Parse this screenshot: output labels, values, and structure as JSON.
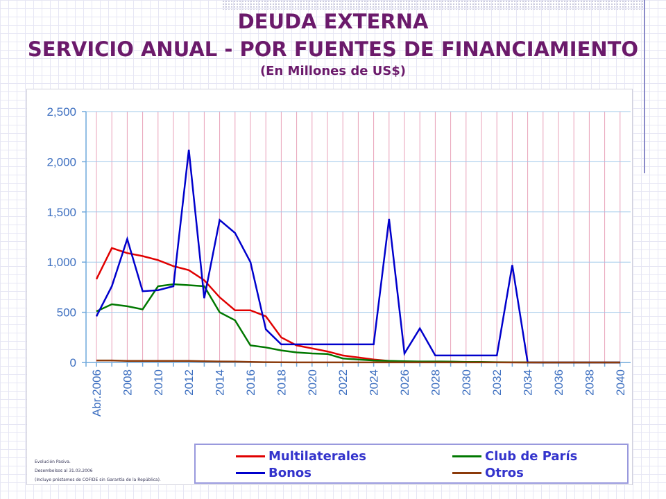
{
  "title_line1": "DEUDA EXTERNA",
  "title_line2": "SERVICIO ANUAL - POR FUENTES DE FINANCIAMIENTO",
  "title_line3": "(En Millones de US$)",
  "footnotes": [
    "Evolución Pasiva.",
    "Desembolsos al 31.03.2006",
    "(Incluye préstamos de COFIDE sin Garantía de la República)."
  ],
  "chart_data": {
    "type": "line",
    "title": "SERVICIO ANUAL - POR FUENTES DE FINANCIAMIENTO",
    "xlabel": "",
    "ylabel": "",
    "ylim": [
      0,
      2500
    ],
    "yticks": [
      0,
      500,
      1000,
      1500,
      2000,
      2500
    ],
    "ytick_labels": [
      "0",
      "500",
      "1,000",
      "1,500",
      "2,000",
      "2,500"
    ],
    "x": [
      "Abr.2006",
      "2007",
      "2008",
      "2009",
      "2010",
      "2011",
      "2012",
      "2013",
      "2014",
      "2015",
      "2016",
      "2017",
      "2018",
      "2019",
      "2020",
      "2021",
      "2022",
      "2023",
      "2024",
      "2025",
      "2026",
      "2027",
      "2028",
      "2029",
      "2030",
      "2031",
      "2032",
      "2033",
      "2034",
      "2035",
      "2036",
      "2037",
      "2038",
      "2039",
      "2040"
    ],
    "xtick_labels": [
      "Abr.2006",
      "2008",
      "2010",
      "2012",
      "2014",
      "2016",
      "2018",
      "2020",
      "2022",
      "2024",
      "2026",
      "2028",
      "2030",
      "2032",
      "2034",
      "2036",
      "2038",
      "2040"
    ],
    "xtick_label_indices": [
      0,
      2,
      4,
      6,
      8,
      10,
      12,
      14,
      16,
      18,
      20,
      22,
      24,
      26,
      28,
      30,
      32,
      34
    ],
    "grid": true,
    "legend": "bottom",
    "series": [
      {
        "name": "Multilaterales",
        "color": "#e00000",
        "values": [
          830,
          1140,
          1090,
          1060,
          1020,
          960,
          920,
          820,
          650,
          520,
          520,
          460,
          250,
          170,
          140,
          110,
          70,
          50,
          30,
          15,
          10,
          8,
          5,
          5,
          3,
          2,
          2,
          1,
          1,
          0,
          0,
          0,
          0,
          0,
          0
        ]
      },
      {
        "name": "Club de París",
        "color": "#007800",
        "values": [
          510,
          580,
          560,
          530,
          760,
          780,
          770,
          760,
          500,
          420,
          170,
          150,
          120,
          100,
          90,
          85,
          40,
          30,
          20,
          15,
          12,
          10,
          10,
          8,
          5,
          5,
          3,
          2,
          1,
          0,
          0,
          0,
          0,
          0,
          0
        ]
      },
      {
        "name": "Bonos",
        "color": "#0000cc",
        "values": [
          460,
          760,
          1230,
          710,
          720,
          760,
          2120,
          640,
          1420,
          1290,
          1000,
          330,
          180,
          180,
          180,
          180,
          180,
          180,
          180,
          1430,
          90,
          340,
          70,
          70,
          70,
          70,
          70,
          970,
          0,
          0,
          0,
          0,
          0,
          0,
          0
        ]
      },
      {
        "name": "Otros",
        "color": "#8b3a0a",
        "values": [
          20,
          20,
          15,
          15,
          15,
          15,
          15,
          12,
          10,
          8,
          5,
          3,
          2,
          1,
          1,
          1,
          1,
          1,
          1,
          1,
          1,
          1,
          1,
          1,
          1,
          1,
          1,
          1,
          0,
          0,
          0,
          0,
          0,
          0,
          0
        ]
      }
    ]
  },
  "legend": {
    "items": [
      {
        "label": "Multilaterales",
        "color": "#e00000"
      },
      {
        "label": "Club de París",
        "color": "#007800"
      },
      {
        "label": "Bonos",
        "color": "#0000cc"
      },
      {
        "label": "Otros",
        "color": "#8b3a0a"
      }
    ]
  }
}
